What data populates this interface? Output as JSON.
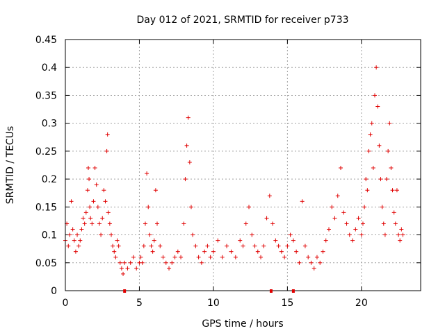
{
  "chart_data": {
    "type": "scatter",
    "title": "Day 012 of 2021, SRMTID for receiver p733",
    "xlabel": "GPS time / hours",
    "ylabel": "SRMTID / TECUs",
    "xlim": [
      0,
      24
    ],
    "ylim": [
      0,
      0.45
    ],
    "x_ticks": [
      0,
      5,
      10,
      15,
      20
    ],
    "x_tick_labels": [
      "0",
      "5",
      "10",
      "15",
      "20"
    ],
    "y_ticks": [
      0,
      0.05,
      0.1,
      0.15,
      0.2,
      0.25,
      0.3,
      0.35,
      0.4,
      0.45
    ],
    "y_tick_labels": [
      "0",
      "0.05",
      "0.1",
      "0.15",
      "0.2",
      "0.25",
      "0.3",
      "0.35",
      "0.4",
      "0.45"
    ],
    "grid": true,
    "marker": "+",
    "color": "#e00000",
    "gap_markers_x": [
      4.0,
      13.9,
      15.4
    ],
    "series": [
      {
        "name": "SRMTID",
        "x": [
          0.0,
          0.1,
          0.2,
          0.3,
          0.4,
          0.5,
          0.6,
          0.7,
          0.8,
          0.9,
          1.0,
          1.1,
          1.2,
          1.3,
          1.4,
          1.5,
          1.55,
          1.6,
          1.65,
          1.7,
          1.8,
          1.9,
          2.0,
          2.1,
          2.2,
          2.3,
          2.4,
          2.5,
          2.6,
          2.7,
          2.8,
          2.85,
          2.9,
          3.0,
          3.1,
          3.2,
          3.3,
          3.4,
          3.5,
          3.6,
          3.7,
          3.8,
          3.9,
          4.0,
          4.2,
          4.4,
          4.6,
          4.8,
          5.0,
          5.1,
          5.2,
          5.3,
          5.4,
          5.5,
          5.6,
          5.7,
          5.8,
          5.9,
          6.0,
          6.1,
          6.2,
          6.4,
          6.6,
          6.8,
          7.0,
          7.2,
          7.4,
          7.6,
          7.8,
          8.0,
          8.1,
          8.2,
          8.3,
          8.4,
          8.5,
          8.6,
          8.8,
          9.0,
          9.2,
          9.4,
          9.6,
          9.8,
          10.0,
          10.3,
          10.6,
          10.9,
          11.2,
          11.5,
          11.8,
          12.0,
          12.2,
          12.4,
          12.6,
          12.8,
          13.0,
          13.2,
          13.4,
          13.6,
          13.8,
          14.0,
          14.2,
          14.4,
          14.6,
          14.8,
          15.0,
          15.2,
          15.4,
          15.6,
          15.8,
          16.0,
          16.2,
          16.4,
          16.6,
          16.8,
          17.0,
          17.2,
          17.4,
          17.6,
          17.8,
          18.0,
          18.2,
          18.4,
          18.6,
          18.8,
          19.0,
          19.2,
          19.4,
          19.6,
          19.8,
          20.0,
          20.1,
          20.2,
          20.3,
          20.4,
          20.5,
          20.6,
          20.7,
          20.8,
          20.9,
          21.0,
          21.1,
          21.2,
          21.3,
          21.4,
          21.5,
          21.6,
          21.7,
          21.8,
          21.9,
          22.0,
          22.1,
          22.2,
          22.3,
          22.4,
          22.5,
          22.6,
          22.7,
          22.8
        ],
        "y": [
          0.09,
          0.12,
          0.08,
          0.1,
          0.16,
          0.11,
          0.09,
          0.07,
          0.1,
          0.08,
          0.09,
          0.11,
          0.13,
          0.12,
          0.14,
          0.18,
          0.22,
          0.2,
          0.15,
          0.13,
          0.12,
          0.16,
          0.22,
          0.19,
          0.15,
          0.12,
          0.1,
          0.13,
          0.18,
          0.16,
          0.25,
          0.28,
          0.14,
          0.12,
          0.1,
          0.08,
          0.07,
          0.06,
          0.09,
          0.08,
          0.05,
          0.04,
          0.03,
          0.05,
          0.04,
          0.05,
          0.06,
          0.04,
          0.05,
          0.06,
          0.05,
          0.08,
          0.12,
          0.21,
          0.15,
          0.1,
          0.08,
          0.07,
          0.09,
          0.18,
          0.12,
          0.08,
          0.06,
          0.05,
          0.04,
          0.05,
          0.06,
          0.07,
          0.06,
          0.12,
          0.2,
          0.26,
          0.31,
          0.23,
          0.15,
          0.1,
          0.08,
          0.06,
          0.05,
          0.07,
          0.08,
          0.06,
          0.07,
          0.09,
          0.06,
          0.08,
          0.07,
          0.06,
          0.09,
          0.08,
          0.12,
          0.15,
          0.1,
          0.08,
          0.07,
          0.06,
          0.08,
          0.13,
          0.17,
          0.12,
          0.09,
          0.08,
          0.07,
          0.06,
          0.08,
          0.1,
          0.09,
          0.07,
          0.05,
          0.16,
          0.08,
          0.06,
          0.05,
          0.04,
          0.06,
          0.05,
          0.07,
          0.09,
          0.11,
          0.15,
          0.13,
          0.17,
          0.22,
          0.14,
          0.12,
          0.1,
          0.09,
          0.11,
          0.13,
          0.1,
          0.12,
          0.15,
          0.2,
          0.18,
          0.25,
          0.28,
          0.3,
          0.22,
          0.35,
          0.4,
          0.33,
          0.26,
          0.2,
          0.15,
          0.12,
          0.1,
          0.2,
          0.25,
          0.3,
          0.22,
          0.18,
          0.14,
          0.12,
          0.18,
          0.1,
          0.09,
          0.11,
          0.1
        ]
      }
    ]
  }
}
